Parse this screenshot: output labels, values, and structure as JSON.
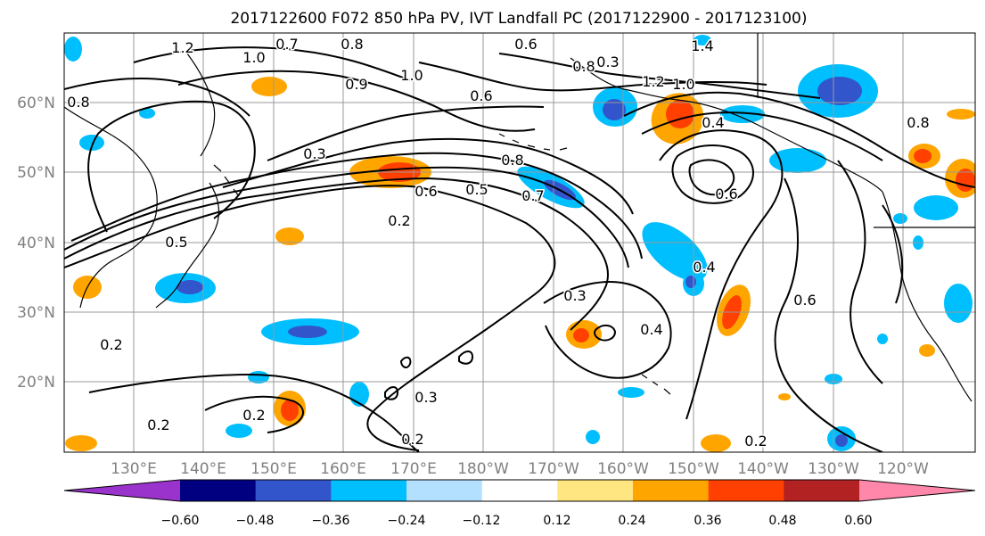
{
  "title": "2017122600 F072 850 hPa PV, IVT Landfall PC (2017122900 - 2017123100)",
  "map": {
    "lat_labels": [
      "60°N",
      "50°N",
      "40°N",
      "30°N",
      "20°N"
    ],
    "lon_labels": [
      "130°E",
      "140°E",
      "150°E",
      "160°E",
      "170°E",
      "180°W",
      "170°W",
      "160°W",
      "150°W",
      "140°W",
      "130°W",
      "120°W"
    ],
    "contour_labels": [
      "1.2",
      "0.7",
      "0.8",
      "1.0",
      "0.6",
      "0.8",
      "1.2",
      "1.4",
      "0.8",
      "0.9",
      "1.0",
      "0.6",
      "1.0",
      "0.4",
      "0.8",
      "0.3",
      "0.8",
      "0.6",
      "0.5",
      "0.7",
      "0.2",
      "0.6",
      "0.4",
      "0.5",
      "0.2",
      "0.3",
      "0.4",
      "0.6",
      "0.3",
      "0.2",
      "0.2",
      "0.2",
      "0.2",
      "0.3"
    ],
    "colors": {
      "coast": "#000000",
      "grid": "#999999",
      "contour": "#000000"
    }
  },
  "colorbar": {
    "tick_labels": [
      "−0.60",
      "−0.48",
      "−0.36",
      "−0.24",
      "−0.12",
      "0.12",
      "0.24",
      "0.36",
      "0.48",
      "0.60"
    ],
    "colors": [
      "#9933cc",
      "#000080",
      "#3355cc",
      "#00bfff",
      "#b3e0ff",
      "#ffffff",
      "#ffe680",
      "#ffa500",
      "#ff4000",
      "#b22222",
      "#ff88aa"
    ]
  }
}
